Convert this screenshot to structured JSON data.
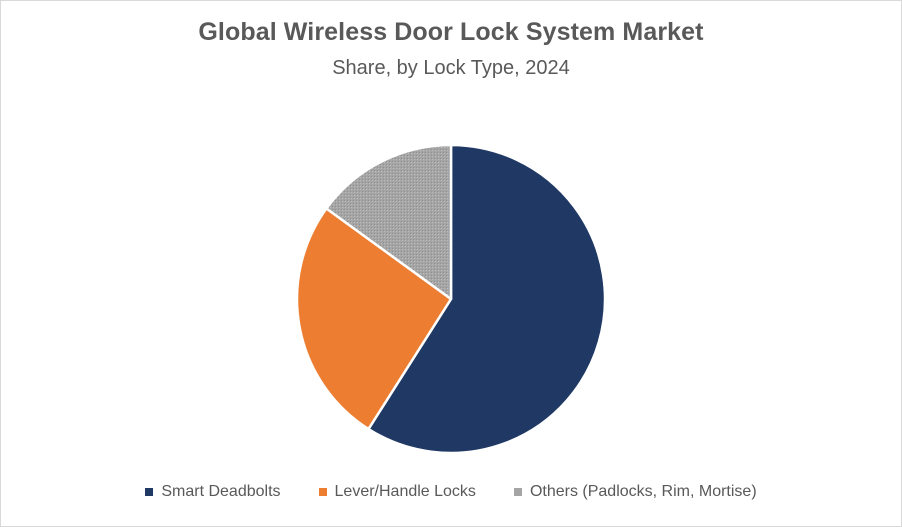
{
  "chart_data": {
    "type": "pie",
    "title": "Global Wireless Door Lock System Market",
    "subtitle": "Share, by Lock Type, 2024",
    "categories": [
      "Smart Deadbolts",
      "Lever/Handle Locks",
      "Others (Padlocks, Rim, Mortise)"
    ],
    "values": [
      59,
      26,
      15
    ],
    "colors": [
      "#1f3864",
      "#ed7d31",
      "#a5a5a5"
    ],
    "legend_position": "bottom",
    "start_angle": "top, clockwise"
  }
}
